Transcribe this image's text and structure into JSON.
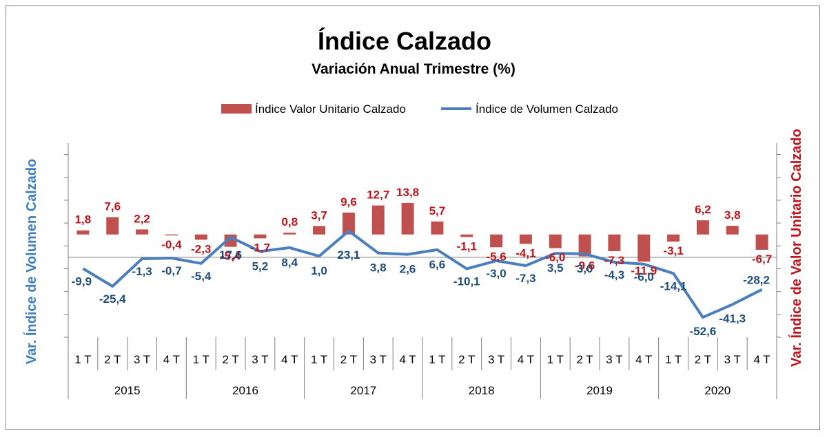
{
  "chart_data": {
    "type": "bar",
    "title": "Índice Calzado",
    "subtitle": "Variación Anual Trimestre  (%)",
    "ylabel_left": "Var. Índice de Volumen Calzado",
    "ylabel_right": "Var. Índice de Valor Unitario Calzado",
    "years": [
      "2015",
      "2016",
      "2017",
      "2018",
      "2019",
      "2020"
    ],
    "quarters": [
      "1 T",
      "2 T",
      "3 T",
      "4 T"
    ],
    "series": [
      {
        "name": "Índice Valor Unitario Calzado",
        "type": "bar",
        "axis": "right",
        "color": "#c0504d",
        "values": [
          1.8,
          7.6,
          2.2,
          -0.4,
          -2.3,
          -5.4,
          -1.7,
          0.8,
          3.7,
          9.6,
          12.7,
          13.8,
          5.7,
          -1.1,
          -5.6,
          -4.1,
          -6.0,
          -9.6,
          -7.3,
          -11.9,
          -3.1,
          6.2,
          3.8,
          -6.7
        ],
        "labels": [
          "1,8",
          "7,6",
          "2,2",
          "-0,4",
          "-2,3",
          "-5,4",
          "-1,7",
          "0,8",
          "3,7",
          "9,6",
          "12,7",
          "13,8",
          "5,7",
          "-1,1",
          "-5,6",
          "-4,1",
          "-6,0",
          "-9,6",
          "-7,3",
          "-11,9",
          "-3,1",
          "6,2",
          "3,8",
          "-6,7"
        ]
      },
      {
        "name": "Índice de Volumen Calzado",
        "type": "line",
        "axis": "left",
        "color": "#4a7ebf",
        "values": [
          -9.9,
          -25.4,
          -1.3,
          -0.7,
          -5.4,
          17.6,
          5.2,
          8.4,
          1.0,
          23.1,
          3.8,
          2.6,
          6.6,
          -10.1,
          -3.0,
          -7.3,
          3.5,
          3.0,
          -4.3,
          -6.0,
          -14.1,
          -52.6,
          -41.3,
          -28.2
        ],
        "labels": [
          "-9,9",
          "-25,4",
          "-1,3",
          "-0,7",
          "-5,4",
          "17,6",
          "5,2",
          "8,4",
          "1,0",
          "23,1",
          "3,8",
          "2,6",
          "6,6",
          "-10,1",
          "-3,0",
          "-7,3",
          "3,5",
          "3,0",
          "-4,3",
          "-6,0",
          "-14,1",
          "-52,6",
          "-41,3",
          "-28,2"
        ]
      }
    ],
    "ylim_left": [
      -70,
      100
    ],
    "ylim_right": [
      -45,
      40
    ],
    "grid": false,
    "legend_position": "top"
  }
}
